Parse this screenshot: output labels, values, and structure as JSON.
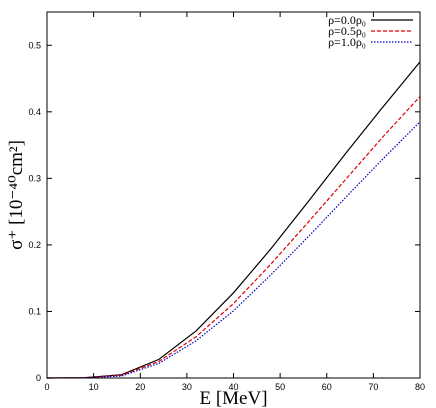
{
  "chart_data": {
    "type": "line",
    "title": "",
    "xlabel": "E [MeV]",
    "ylabel": "σ⁺ [10⁻⁴⁰cm²]",
    "xlim": [
      0,
      80
    ],
    "ylim": [
      0,
      0.55
    ],
    "xticks": [
      0,
      10,
      20,
      30,
      40,
      50,
      60,
      70,
      80
    ],
    "yticks": [
      0,
      0.1,
      0.2,
      0.3,
      0.4,
      0.5
    ],
    "xtick_labels": [
      "0",
      "10",
      "20",
      "30",
      "40",
      "50",
      "60",
      "70",
      "80"
    ],
    "ytick_labels": [
      "0",
      "0.1",
      "0.2",
      "0.3",
      "0.4",
      "0.5"
    ],
    "grid": false,
    "legend_position": "top-right",
    "series": [
      {
        "name": "ρ=0.0ρ₀",
        "color": "#000000",
        "dash": "solid",
        "x": [
          0,
          8,
          16,
          24,
          32,
          40,
          48,
          56,
          64,
          72,
          80
        ],
        "y": [
          0,
          0.0005,
          0.005,
          0.028,
          0.071,
          0.128,
          0.194,
          0.265,
          0.337,
          0.407,
          0.475
        ]
      },
      {
        "name": "ρ=0.5ρ₀",
        "color": "#e00000",
        "dash": "dashed",
        "x": [
          0,
          8,
          16,
          24,
          32,
          40,
          48,
          56,
          64,
          72,
          80
        ],
        "y": [
          0,
          0.0004,
          0.004,
          0.025,
          0.062,
          0.112,
          0.171,
          0.234,
          0.298,
          0.362,
          0.423
        ]
      },
      {
        "name": "ρ=1.0ρ₀",
        "color": "#0000c0",
        "dash": "dotted",
        "x": [
          0,
          8,
          16,
          24,
          32,
          40,
          48,
          56,
          64,
          72,
          80
        ],
        "y": [
          0,
          0.0003,
          0.003,
          0.022,
          0.056,
          0.101,
          0.155,
          0.212,
          0.271,
          0.329,
          0.385
        ]
      }
    ]
  }
}
